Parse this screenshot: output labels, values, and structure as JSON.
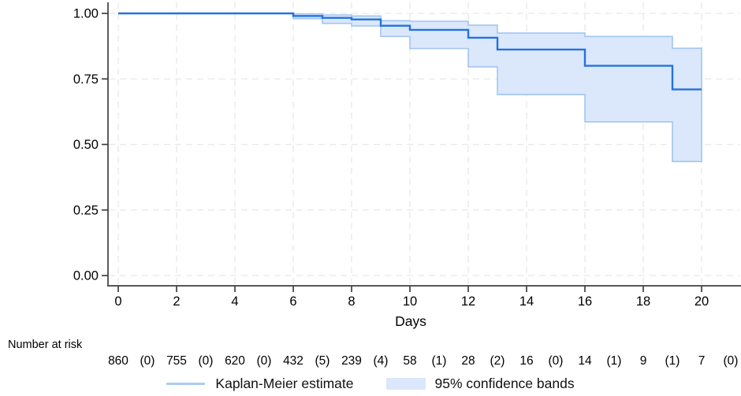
{
  "chart_data": {
    "type": "line",
    "chart_kind": "kaplan-meier-survival",
    "title": "",
    "xlabel": "Days",
    "ylabel": "",
    "xlim": [
      0,
      20
    ],
    "ylim": [
      0.0,
      1.0
    ],
    "xticks": [
      0,
      2,
      4,
      6,
      8,
      10,
      12,
      14,
      16,
      18,
      20
    ],
    "ytick_labels": [
      "0.00",
      "0.25",
      "0.50",
      "0.75",
      "1.00"
    ],
    "ytick_values": [
      0,
      0.25,
      0.5,
      0.75,
      1.0
    ],
    "grid": "dashed-both-axes",
    "legend_position": "bottom-center",
    "series": [
      {
        "name": "Kaplan-Meier estimate",
        "type": "step-line",
        "step_times": [
          0,
          6,
          7,
          8,
          9,
          10,
          12,
          13,
          16,
          19
        ],
        "survival": [
          1.0,
          0.99,
          0.983,
          0.977,
          0.953,
          0.937,
          0.907,
          0.862,
          0.8,
          0.71
        ],
        "end_time": 20
      },
      {
        "name": "95% confidence bands",
        "type": "step-band",
        "step_times": [
          6,
          7,
          8,
          9,
          10,
          12,
          13,
          16,
          19
        ],
        "upper": [
          0.998,
          0.994,
          0.99,
          0.972,
          0.97,
          0.955,
          0.925,
          0.912,
          0.867
        ],
        "lower": [
          0.98,
          0.962,
          0.952,
          0.912,
          0.866,
          0.796,
          0.69,
          0.586,
          0.435
        ],
        "end_time": 20
      }
    ],
    "legend": [
      {
        "label": "Kaplan-Meier estimate",
        "swatch": "line"
      },
      {
        "label": "95% confidence bands",
        "swatch": "band"
      }
    ],
    "risk_table": {
      "label": "Number at risk",
      "times": [
        0,
        2,
        4,
        6,
        8,
        10,
        12,
        14,
        16,
        18,
        20
      ],
      "at_risk": [
        860,
        755,
        620,
        432,
        239,
        58,
        28,
        16,
        14,
        9,
        7
      ],
      "events": [
        "(0)",
        "(0)",
        "(0)",
        "(5)",
        "(4)",
        "(1)",
        "(2)",
        "(0)",
        "(1)",
        "(1)",
        "(0)"
      ]
    },
    "colors": {
      "km_line": "#2273dd",
      "band_fill": "#dbe7fb",
      "band_edge": "#a3c5f2",
      "legend_line_swatch": "#a9cbf7",
      "grid": "#e8e8e8",
      "axis": "#3f3f3f",
      "text": "#000000"
    }
  }
}
